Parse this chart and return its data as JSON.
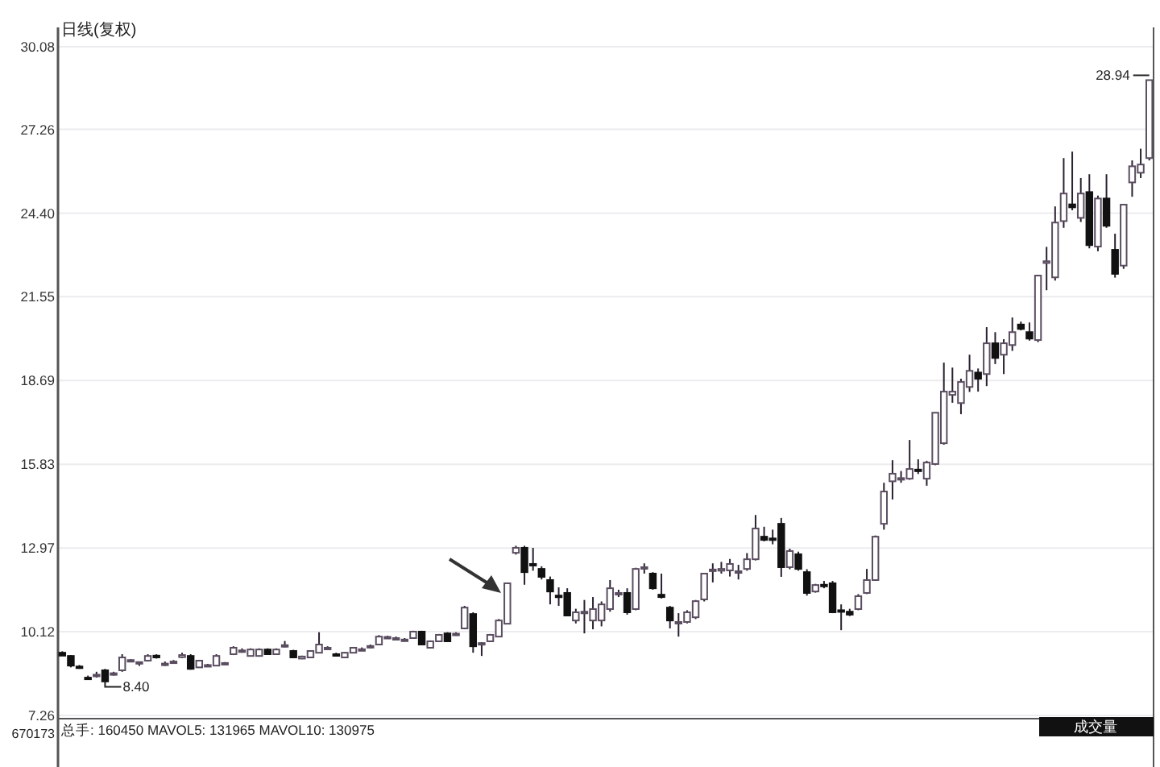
{
  "chart_data": {
    "type": "candlestick",
    "title": "日线(复权)",
    "ylim": [
      7.26,
      30.08
    ],
    "yticks": [
      7.26,
      {
        "value": 10.12,
        "label": "10.12"
      },
      12.97,
      15.83,
      18.69,
      21.55,
      {
        "value": 24.4,
        "label": "24.40"
      },
      27.26,
      30.08
    ],
    "grid": "y",
    "annotations": [
      "8.40",
      "28.94",
      "总手: 160450 MAVOL5: 131965 MAVOL10: 130975",
      "670173",
      "成交量"
    ],
    "categories": [
      null,
      null,
      null,
      null,
      null,
      null,
      null,
      null,
      null,
      null,
      null,
      null,
      null,
      null,
      null,
      null,
      null,
      null,
      null,
      null,
      null,
      null,
      null,
      null,
      null,
      null,
      null,
      null,
      null,
      null,
      null,
      null,
      null,
      null,
      null,
      null,
      null,
      null,
      null,
      null,
      null,
      null,
      null,
      null,
      null,
      null,
      null,
      null,
      null,
      null,
      null,
      null,
      null,
      null,
      null,
      null,
      null,
      null,
      null,
      null,
      null,
      null,
      null,
      null,
      null,
      null,
      null,
      null,
      null,
      null,
      null,
      null,
      null,
      null,
      null,
      null,
      null,
      null,
      null,
      null,
      null,
      null,
      null,
      null,
      null,
      null,
      null,
      null,
      null,
      null,
      null,
      null,
      null,
      null,
      null,
      null,
      null,
      null,
      null,
      null,
      null,
      null,
      null,
      null,
      null,
      null,
      null,
      null,
      null,
      null,
      null,
      null,
      null,
      null,
      null,
      null,
      null,
      null,
      null,
      null,
      null,
      null,
      null,
      null,
      null,
      null,
      null,
      null
    ],
    "ohlc": [
      [
        9.4,
        9.45,
        9.3,
        9.3
      ],
      [
        9.29,
        9.32,
        8.9,
        8.96
      ],
      [
        8.93,
        8.98,
        8.85,
        8.9
      ],
      [
        8.55,
        8.62,
        8.5,
        8.52
      ],
      [
        8.62,
        8.75,
        8.55,
        8.65
      ],
      [
        8.8,
        8.85,
        8.4,
        8.42
      ],
      [
        8.68,
        8.75,
        8.62,
        8.7
      ],
      [
        8.8,
        9.35,
        8.75,
        9.24
      ],
      [
        9.13,
        9.18,
        9.08,
        9.15
      ],
      [
        9.05,
        9.1,
        8.95,
        9.08
      ],
      [
        9.13,
        9.35,
        9.1,
        9.29
      ],
      [
        9.3,
        9.35,
        9.2,
        9.24
      ],
      [
        9.02,
        9.1,
        8.95,
        9.03
      ],
      [
        9.08,
        9.15,
        9.05,
        9.1
      ],
      [
        9.25,
        9.4,
        9.22,
        9.32
      ],
      [
        9.29,
        9.35,
        8.82,
        8.85
      ],
      [
        8.9,
        9.15,
        8.88,
        9.13
      ],
      [
        8.96,
        9.02,
        8.92,
        8.98
      ],
      [
        8.96,
        9.35,
        8.94,
        9.29
      ],
      [
        9.02,
        9.08,
        8.98,
        9.05
      ],
      [
        9.35,
        9.62,
        9.32,
        9.57
      ],
      [
        9.45,
        9.55,
        9.4,
        9.48
      ],
      [
        9.29,
        9.55,
        9.27,
        9.51
      ],
      [
        9.29,
        9.55,
        9.27,
        9.51
      ],
      [
        9.51,
        9.55,
        9.33,
        9.35
      ],
      [
        9.35,
        9.55,
        9.33,
        9.51
      ],
      [
        9.62,
        9.8,
        9.58,
        9.66
      ],
      [
        9.46,
        9.5,
        9.22,
        9.24
      ],
      [
        9.2,
        9.3,
        9.18,
        9.27
      ],
      [
        9.24,
        9.48,
        9.22,
        9.46
      ],
      [
        9.4,
        10.1,
        9.38,
        9.68
      ],
      [
        9.55,
        9.62,
        9.5,
        9.57
      ],
      [
        9.35,
        9.4,
        9.28,
        9.33
      ],
      [
        9.24,
        9.42,
        9.22,
        9.4
      ],
      [
        9.4,
        9.58,
        9.38,
        9.57
      ],
      [
        9.5,
        9.58,
        9.48,
        9.52
      ],
      [
        9.62,
        9.68,
        9.55,
        9.63
      ],
      [
        9.68,
        10.0,
        9.66,
        9.95
      ],
      [
        9.92,
        9.98,
        9.88,
        9.94
      ],
      [
        9.88,
        9.95,
        9.85,
        9.9
      ],
      [
        9.84,
        9.9,
        9.8,
        9.85
      ],
      [
        9.9,
        10.15,
        9.88,
        10.12
      ],
      [
        10.12,
        10.15,
        9.66,
        9.68
      ],
      [
        9.57,
        9.82,
        9.55,
        9.79
      ],
      [
        9.79,
        10.04,
        9.77,
        10.01
      ],
      [
        10.06,
        10.1,
        9.77,
        9.79
      ],
      [
        10.02,
        10.1,
        9.98,
        10.05
      ],
      [
        10.23,
        11.0,
        10.2,
        10.94
      ],
      [
        10.72,
        10.78,
        9.4,
        9.62
      ],
      [
        9.7,
        9.76,
        9.29,
        9.73
      ],
      [
        9.79,
        10.04,
        9.77,
        10.01
      ],
      [
        9.95,
        10.55,
        9.93,
        10.5
      ],
      [
        10.39,
        11.77,
        10.37,
        11.77
      ],
      [
        12.81,
        13.05,
        12.75,
        12.98
      ],
      [
        12.98,
        13.05,
        11.72,
        12.15
      ],
      [
        12.43,
        12.98,
        12.2,
        12.4
      ],
      [
        12.26,
        12.35,
        11.9,
        11.99
      ],
      [
        11.88,
        12.0,
        11.05,
        11.49
      ],
      [
        11.35,
        11.63,
        11.0,
        11.3
      ],
      [
        11.44,
        11.6,
        10.65,
        10.67
      ],
      [
        10.5,
        10.9,
        10.4,
        10.78
      ],
      [
        10.75,
        11.2,
        10.06,
        10.8
      ],
      [
        10.5,
        11.3,
        10.2,
        10.89
      ],
      [
        10.5,
        11.15,
        10.3,
        11.05
      ],
      [
        10.89,
        11.88,
        10.8,
        11.6
      ],
      [
        11.4,
        11.55,
        11.3,
        11.44
      ],
      [
        11.44,
        11.6,
        10.7,
        10.78
      ],
      [
        10.89,
        12.3,
        10.85,
        12.26
      ],
      [
        12.3,
        12.45,
        12.1,
        12.32
      ],
      [
        12.1,
        12.15,
        11.55,
        11.6
      ],
      [
        11.38,
        12.1,
        11.25,
        11.3
      ],
      [
        10.94,
        11.0,
        10.23,
        10.5
      ],
      [
        10.45,
        10.75,
        9.95,
        10.45
      ],
      [
        10.45,
        10.85,
        10.4,
        10.78
      ],
      [
        10.61,
        11.2,
        10.55,
        11.16
      ],
      [
        11.22,
        12.1,
        11.15,
        12.1
      ],
      [
        12.2,
        12.45,
        11.8,
        12.24
      ],
      [
        12.2,
        12.5,
        12.1,
        12.26
      ],
      [
        12.21,
        12.6,
        12.0,
        12.43
      ],
      [
        12.15,
        12.4,
        11.9,
        12.18
      ],
      [
        12.26,
        12.8,
        12.2,
        12.59
      ],
      [
        12.59,
        14.1,
        12.55,
        13.64
      ],
      [
        13.36,
        13.7,
        13.2,
        13.25
      ],
      [
        13.3,
        13.6,
        13.1,
        13.25
      ],
      [
        13.8,
        14.0,
        11.99,
        12.32
      ],
      [
        12.32,
        12.95,
        12.25,
        12.87
      ],
      [
        12.76,
        12.85,
        12.2,
        12.26
      ],
      [
        12.15,
        12.25,
        11.35,
        11.44
      ],
      [
        11.49,
        11.75,
        11.45,
        11.71
      ],
      [
        11.72,
        11.85,
        11.6,
        11.68
      ],
      [
        11.77,
        11.85,
        10.75,
        10.78
      ],
      [
        10.85,
        11.05,
        10.17,
        10.83
      ],
      [
        10.8,
        10.9,
        10.65,
        10.7
      ],
      [
        10.89,
        11.4,
        10.85,
        11.33
      ],
      [
        11.44,
        12.26,
        11.4,
        11.88
      ],
      [
        11.88,
        13.4,
        11.85,
        13.36
      ],
      [
        13.8,
        15.2,
        13.6,
        14.9
      ],
      [
        15.25,
        15.97,
        14.63,
        15.51
      ],
      [
        15.33,
        15.6,
        15.2,
        15.36
      ],
      [
        15.34,
        16.66,
        15.3,
        15.67
      ],
      [
        15.65,
        16.0,
        15.5,
        15.6
      ],
      [
        15.34,
        15.95,
        15.1,
        15.89
      ],
      [
        15.84,
        17.6,
        15.8,
        17.59
      ],
      [
        16.55,
        19.3,
        16.5,
        18.31
      ],
      [
        18.2,
        19.13,
        17.93,
        18.31
      ],
      [
        17.92,
        18.75,
        17.54,
        18.64
      ],
      [
        18.47,
        19.57,
        18.3,
        19.02
      ],
      [
        18.96,
        19.1,
        18.31,
        18.75
      ],
      [
        18.91,
        20.51,
        18.5,
        19.96
      ],
      [
        19.96,
        20.34,
        19.25,
        19.46
      ],
      [
        19.57,
        20.1,
        18.91,
        19.96
      ],
      [
        19.9,
        20.84,
        19.7,
        20.34
      ],
      [
        20.6,
        20.7,
        20.4,
        20.45
      ],
      [
        20.34,
        20.67,
        20.05,
        20.12
      ],
      [
        20.07,
        22.3,
        20.0,
        22.27
      ],
      [
        22.7,
        23.25,
        21.77,
        22.76
      ],
      [
        22.21,
        24.63,
        22.1,
        24.08
      ],
      [
        24.13,
        26.28,
        23.9,
        25.07
      ],
      [
        24.7,
        26.5,
        24.5,
        24.6
      ],
      [
        24.24,
        25.6,
        24.1,
        25.07
      ],
      [
        25.12,
        25.73,
        23.2,
        23.31
      ],
      [
        23.26,
        25.0,
        23.1,
        24.9
      ],
      [
        24.9,
        25.73,
        23.9,
        23.97
      ],
      [
        23.15,
        23.7,
        22.2,
        22.33
      ],
      [
        22.61,
        24.7,
        22.5,
        24.69
      ],
      [
        25.45,
        26.2,
        24.96,
        26.0
      ],
      [
        25.78,
        26.6,
        25.6,
        26.06
      ],
      [
        26.28,
        28.94,
        26.2,
        28.94
      ]
    ]
  }
}
